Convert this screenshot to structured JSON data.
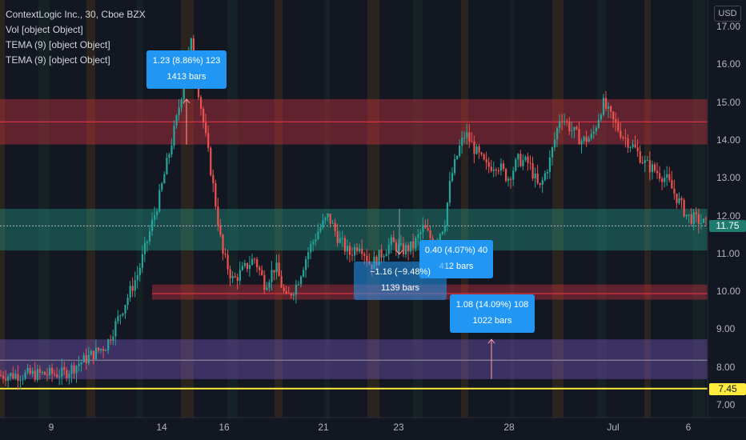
{
  "legend": {
    "title": "ContextLogic Inc., 30, Cboe BZX",
    "indicators": [
      "Vol [object Object]",
      "TEMA (9) [object Object]",
      "TEMA (9) [object Object]"
    ]
  },
  "currency": "USD",
  "colors": {
    "background": "#131722",
    "up": "#26a69a",
    "down": "#ef5350",
    "red_zone": "#f23645",
    "green_zone": "#22ab94",
    "purple_zone": "#7e57c2",
    "yellow_line": "#ffeb3b",
    "measure_box": "#2196f3"
  },
  "chart_data": {
    "type": "candlestick",
    "ylim": [
      6.85,
      17.35
    ],
    "y_ticks": [
      "17.00",
      "16.00",
      "15.00",
      "14.00",
      "13.00",
      "12.00",
      "11.00",
      "10.00",
      "9.00",
      "8.00",
      "7.00"
    ],
    "y_tick_values": [
      17,
      16,
      15,
      14,
      13,
      12,
      11,
      10,
      9,
      8,
      7
    ],
    "x_ticks": [
      "9",
      "14",
      "16",
      "21",
      "23",
      "28",
      "Jul",
      "6"
    ],
    "close_path": [
      [
        0,
        7.8
      ],
      [
        3,
        7.85
      ],
      [
        5,
        8.6
      ],
      [
        6.5,
        10.5
      ],
      [
        7.5,
        12.5
      ],
      [
        8.3,
        14.5
      ],
      [
        9,
        16.6
      ],
      [
        9.5,
        14.8
      ],
      [
        10,
        13.0
      ],
      [
        10.5,
        11.0
      ],
      [
        11,
        10.3
      ],
      [
        11.5,
        10.6
      ],
      [
        12,
        10.9
      ],
      [
        12.5,
        10.2
      ],
      [
        13,
        10.7
      ],
      [
        13.5,
        9.8
      ],
      [
        14,
        10.2
      ],
      [
        14.5,
        11.0
      ],
      [
        15,
        11.6
      ],
      [
        15.5,
        12.0
      ],
      [
        16,
        11.4
      ],
      [
        16.5,
        11.0
      ],
      [
        17,
        11.3
      ],
      [
        17.5,
        10.7
      ],
      [
        18,
        11.0
      ],
      [
        18.5,
        11.3
      ],
      [
        19,
        11.1
      ],
      [
        19.5,
        11.2
      ],
      [
        20,
        11.7
      ],
      [
        20.5,
        11.3
      ],
      [
        21,
        11.8
      ],
      [
        21.3,
        13.0
      ],
      [
        21.7,
        13.8
      ],
      [
        22,
        14.2
      ],
      [
        22.5,
        13.7
      ],
      [
        23,
        13.3
      ],
      [
        23.5,
        13.4
      ],
      [
        24,
        13.0
      ],
      [
        24.5,
        13.5
      ],
      [
        25,
        13.4
      ],
      [
        25.5,
        12.7
      ],
      [
        26,
        13.5
      ],
      [
        26.5,
        14.7
      ],
      [
        27,
        14.3
      ],
      [
        27.5,
        14.0
      ],
      [
        28,
        14.1
      ],
      [
        28.5,
        15.0
      ],
      [
        29,
        14.5
      ],
      [
        29.5,
        14.1
      ],
      [
        30,
        13.8
      ],
      [
        30.5,
        13.4
      ],
      [
        31,
        13.2
      ],
      [
        31.5,
        13.0
      ],
      [
        32,
        12.5
      ],
      [
        32.5,
        12.0
      ],
      [
        33,
        11.9
      ],
      [
        33.5,
        11.75
      ]
    ],
    "x_day_range": [
      7,
      34.5
    ],
    "horizontal_lines": [
      {
        "price": 14.5,
        "color": "#f23645"
      },
      {
        "price": 9.96,
        "color": "#f23645"
      },
      {
        "price": 11.75,
        "color": "#b2b5be"
      },
      {
        "price": 8.2,
        "color": "#9598a1"
      },
      {
        "price": 7.45,
        "color": "#ffeb3b"
      }
    ],
    "zones": [
      {
        "from": 13.9,
        "to": 15.1,
        "kind": "red"
      },
      {
        "from": 11.1,
        "to": 12.2,
        "kind": "green"
      },
      {
        "from": 9.8,
        "to": 10.2,
        "kind": "red"
      },
      {
        "from": 7.7,
        "to": 8.75,
        "kind": "purple"
      }
    ],
    "price_labels": [
      {
        "text": "11.75",
        "price": 11.75,
        "kind": "current"
      },
      {
        "text": "7.45",
        "price": 7.45,
        "kind": "yellow"
      }
    ],
    "measurements": [
      {
        "line1": "1.23 (8.86%) 123",
        "line2": "1413 bars",
        "direction": "up",
        "from_price": 13.9,
        "to_price": 15.1
      },
      {
        "line1": "0.40 (4.07%) 40",
        "line2": "412 bars",
        "direction": "none"
      },
      {
        "line1": "−1.16 (−9.48%)",
        "line2": "1139 bars",
        "direction": "down",
        "from_price": 12.2,
        "to_price": 11.0
      },
      {
        "line1": "1.08 (14.09%) 108",
        "line2": "1022 bars",
        "direction": "up",
        "from_price": 7.7,
        "to_price": 8.75
      }
    ]
  }
}
